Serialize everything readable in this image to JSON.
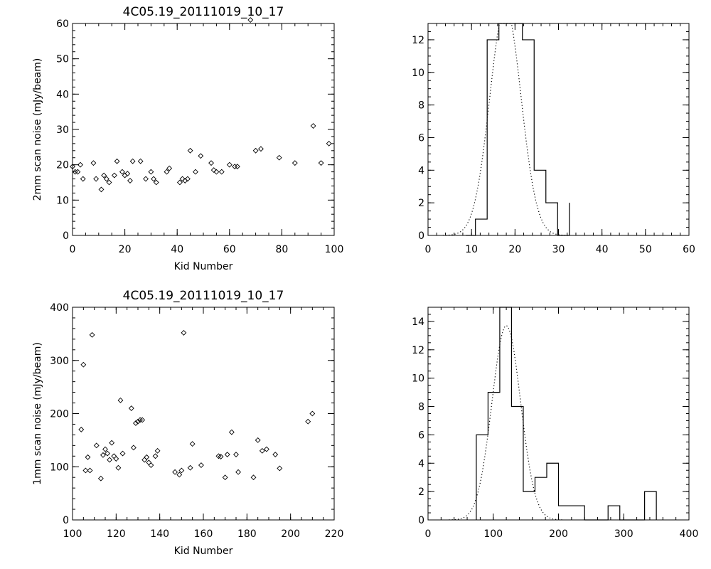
{
  "chart_data": [
    {
      "type": "scatter",
      "title": "4C05.19_20111019_10_17",
      "xlabel": "Kid Number",
      "ylabel": "2mm scan noise (mJy/beam)",
      "xlim": [
        0,
        100
      ],
      "ylim": [
        0,
        60
      ],
      "xticks": [
        0,
        20,
        40,
        60,
        80,
        100
      ],
      "yticks": [
        0,
        10,
        20,
        30,
        40,
        50,
        60
      ],
      "marker": "diamond",
      "points": [
        [
          0,
          19.5
        ],
        [
          1,
          18
        ],
        [
          2,
          18
        ],
        [
          3,
          20
        ],
        [
          4,
          16
        ],
        [
          8,
          20.5
        ],
        [
          9,
          16
        ],
        [
          11,
          13
        ],
        [
          12,
          17
        ],
        [
          13,
          16
        ],
        [
          14,
          15
        ],
        [
          16,
          17
        ],
        [
          17,
          21
        ],
        [
          19,
          18
        ],
        [
          20,
          17
        ],
        [
          21,
          17.5
        ],
        [
          22,
          15.5
        ],
        [
          23,
          21
        ],
        [
          26,
          21
        ],
        [
          28,
          16
        ],
        [
          30,
          18
        ],
        [
          31,
          16
        ],
        [
          32,
          15
        ],
        [
          36,
          18
        ],
        [
          37,
          19
        ],
        [
          41,
          15
        ],
        [
          42,
          16
        ],
        [
          43,
          15.5
        ],
        [
          44,
          16
        ],
        [
          45,
          24
        ],
        [
          47,
          18
        ],
        [
          49,
          22.5
        ],
        [
          53,
          20.5
        ],
        [
          54,
          18.5
        ],
        [
          55,
          18
        ],
        [
          57,
          18
        ],
        [
          60,
          20
        ],
        [
          62,
          19.5
        ],
        [
          63,
          19.5
        ],
        [
          68,
          61
        ],
        [
          70,
          24
        ],
        [
          72,
          24.5
        ],
        [
          79,
          22
        ],
        [
          85,
          20.5
        ],
        [
          92,
          31
        ],
        [
          95,
          20.5
        ],
        [
          98,
          26
        ]
      ]
    },
    {
      "type": "bar",
      "subtype": "histogram",
      "xlim": [
        0,
        60
      ],
      "ylim": [
        0,
        13
      ],
      "xticks": [
        0,
        10,
        20,
        30,
        40,
        50,
        60
      ],
      "yticks": [
        0,
        2,
        4,
        6,
        8,
        10,
        12
      ],
      "bin_edges": [
        8.7,
        10.9,
        13.6,
        16.3,
        19.0,
        21.7,
        24.4,
        27.1,
        29.8,
        32.5
      ],
      "counts": [
        0,
        1,
        12,
        14,
        13,
        12,
        4,
        2,
        0,
        2
      ],
      "gaussian_fit": {
        "amplitude": 14,
        "mean": 17.8,
        "sigma": 3.6
      }
    },
    {
      "type": "scatter",
      "title": "4C05.19_20111019_10_17",
      "xlabel": "Kid Number",
      "ylabel": "1mm scan noise (mJy/beam)",
      "xlim": [
        100,
        220
      ],
      "ylim": [
        0,
        400
      ],
      "xticks": [
        100,
        120,
        140,
        160,
        180,
        200,
        220
      ],
      "yticks": [
        0,
        100,
        200,
        300,
        400
      ],
      "marker": "diamond",
      "points": [
        [
          104,
          170
        ],
        [
          105,
          292
        ],
        [
          106,
          93
        ],
        [
          107,
          118
        ],
        [
          108,
          93
        ],
        [
          109,
          348
        ],
        [
          111,
          140
        ],
        [
          113,
          78
        ],
        [
          114,
          122
        ],
        [
          115,
          133
        ],
        [
          116,
          125
        ],
        [
          117,
          113
        ],
        [
          118,
          145
        ],
        [
          119,
          120
        ],
        [
          120,
          115
        ],
        [
          121,
          98
        ],
        [
          122,
          225
        ],
        [
          123,
          125
        ],
        [
          127,
          210
        ],
        [
          128,
          136
        ],
        [
          129,
          182
        ],
        [
          130,
          185
        ],
        [
          131,
          188
        ],
        [
          132,
          188
        ],
        [
          133,
          113
        ],
        [
          134,
          118
        ],
        [
          135,
          108
        ],
        [
          136,
          103
        ],
        [
          138,
          120
        ],
        [
          139,
          130
        ],
        [
          147,
          90
        ],
        [
          149,
          85
        ],
        [
          150,
          93
        ],
        [
          151,
          352
        ],
        [
          154,
          98
        ],
        [
          155,
          143
        ],
        [
          159,
          103
        ],
        [
          167,
          120
        ],
        [
          168,
          119
        ],
        [
          170,
          80
        ],
        [
          171,
          123
        ],
        [
          173,
          165
        ],
        [
          175,
          123
        ],
        [
          176,
          90
        ],
        [
          183,
          80
        ],
        [
          185,
          150
        ],
        [
          187,
          130
        ],
        [
          189,
          133
        ],
        [
          193,
          123
        ],
        [
          195,
          97
        ],
        [
          208,
          185
        ],
        [
          210,
          200
        ]
      ]
    },
    {
      "type": "bar",
      "subtype": "histogram",
      "xlim": [
        0,
        400
      ],
      "ylim": [
        0,
        15
      ],
      "xticks": [
        0,
        100,
        200,
        300,
        400
      ],
      "yticks": [
        0,
        2,
        4,
        6,
        8,
        10,
        12,
        14
      ],
      "bin_edges": [
        74,
        92,
        110,
        128,
        146,
        164,
        182,
        200,
        240,
        276,
        294,
        332,
        350
      ],
      "counts": [
        6,
        9,
        16,
        8,
        2,
        3,
        4,
        1,
        0,
        1,
        0,
        2
      ],
      "gaussian_fit": {
        "amplitude": 13.7,
        "mean": 120,
        "sigma": 22
      }
    }
  ]
}
